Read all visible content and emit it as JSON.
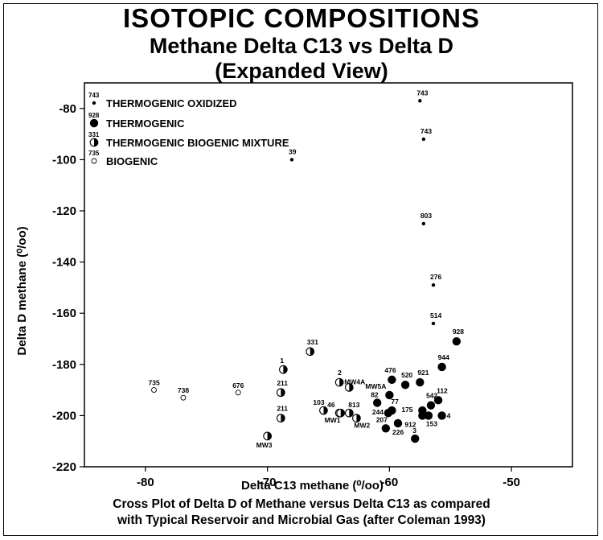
{
  "title": "ISOTOPIC COMPOSITIONS",
  "subtitle": "Methane Delta C13 vs Delta D",
  "subtitle2": "(Expanded View)",
  "caption_line1": "Cross Plot of Delta D of Methane versus Delta C13 as compared",
  "caption_line2": "with Typical Reservoir and Microbial Gas (after Coleman 1993)",
  "chart_data": {
    "type": "scatter",
    "xlabel": "Delta C13 methane (⁰/oo)",
    "ylabel": "Delta D methane (⁰/oo)",
    "xlim": [
      -85,
      -45
    ],
    "ylim": [
      -220,
      -70
    ],
    "x_ticks": [
      -80,
      -70,
      -60,
      -50
    ],
    "y_ticks": [
      -80,
      -100,
      -120,
      -140,
      -160,
      -180,
      -200,
      -220
    ],
    "grid": false,
    "legend_position": "top-left",
    "legend": [
      {
        "category": "thermogenic_oxidized",
        "sample": "743",
        "label": "THERMOGENIC OXIDIZED"
      },
      {
        "category": "thermogenic",
        "sample": "928",
        "label": "THERMOGENIC"
      },
      {
        "category": "mixture",
        "sample": "331",
        "label": "THERMOGENIC BIOGENIC MIXTURE"
      },
      {
        "category": "biogenic",
        "sample": "735",
        "label": "BIOGENIC"
      }
    ],
    "series": [
      {
        "category": "thermogenic_oxidized",
        "points": [
          {
            "label": "743",
            "x": -57.5,
            "y": -77
          },
          {
            "label": "743",
            "x": -57.2,
            "y": -92
          },
          {
            "label": "39",
            "x": -68.0,
            "y": -100
          },
          {
            "label": "803",
            "x": -57.2,
            "y": -125
          },
          {
            "label": "276",
            "x": -56.4,
            "y": -149
          },
          {
            "label": "514",
            "x": -56.4,
            "y": -164
          }
        ]
      },
      {
        "category": "thermogenic",
        "points": [
          {
            "label": "928",
            "x": -54.5,
            "y": -171
          },
          {
            "label": "944",
            "x": -55.7,
            "y": -181
          },
          {
            "label": "476",
            "x": -59.8,
            "y": -186
          },
          {
            "label": "520",
            "x": -58.7,
            "y": -188
          },
          {
            "label": "921",
            "x": -57.5,
            "y": -187
          },
          {
            "label": "MW5A",
            "x": -60.0,
            "y": -192
          },
          {
            "label": "82",
            "x": -61.0,
            "y": -195
          },
          {
            "label": "112",
            "x": -56.0,
            "y": -194
          },
          {
            "label": "542",
            "x": -56.6,
            "y": -196
          },
          {
            "label": "244",
            "x": -60.1,
            "y": -199
          },
          {
            "label": "77",
            "x": -59.8,
            "y": -198
          },
          {
            "label": "175",
            "x": -57.3,
            "y": -198
          },
          {
            "label": "912",
            "x": -57.3,
            "y": -200
          },
          {
            "label": "4",
            "x": -55.7,
            "y": -200
          },
          {
            "label": "153",
            "x": -56.8,
            "y": -200
          },
          {
            "label": "207",
            "x": -60.3,
            "y": -205
          },
          {
            "label": "226",
            "x": -59.3,
            "y": -203
          },
          {
            "label": "3",
            "x": -57.9,
            "y": -209
          }
        ]
      },
      {
        "category": "mixture",
        "points": [
          {
            "label": "331",
            "x": -66.5,
            "y": -175
          },
          {
            "label": "1",
            "x": -68.7,
            "y": -182
          },
          {
            "label": "2",
            "x": -64.1,
            "y": -187
          },
          {
            "label": "MW4A",
            "x": -63.3,
            "y": -189
          },
          {
            "label": "211",
            "x": -68.9,
            "y": -191
          },
          {
            "label": "103",
            "x": -65.4,
            "y": -198
          },
          {
            "label": "46",
            "x": -64.1,
            "y": -199
          },
          {
            "label": "813",
            "x": -63.3,
            "y": -199
          },
          {
            "label": "MW1",
            "x": -64.0,
            "y": -199
          },
          {
            "label": "MW2",
            "x": -62.7,
            "y": -201
          },
          {
            "label": "211",
            "x": -68.9,
            "y": -201
          },
          {
            "label": "MW3",
            "x": -70.0,
            "y": -208
          }
        ]
      },
      {
        "category": "biogenic",
        "points": [
          {
            "label": "735",
            "x": -79.3,
            "y": -190
          },
          {
            "label": "738",
            "x": -76.9,
            "y": -193
          },
          {
            "label": "676",
            "x": -72.4,
            "y": -191
          }
        ]
      }
    ]
  }
}
